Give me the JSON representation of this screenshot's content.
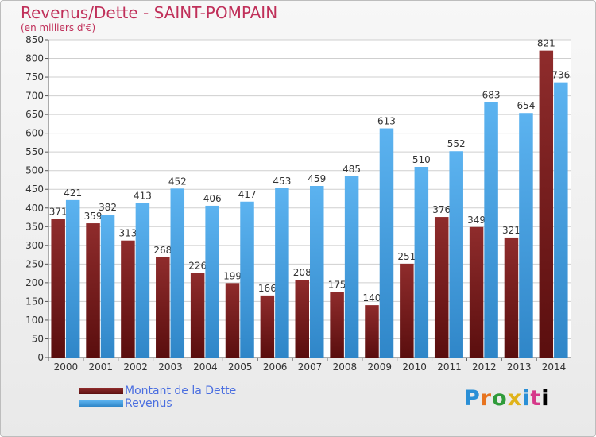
{
  "header": {
    "title": "Revenus/Dette - SAINT-POMPAIN",
    "subtitle": "(en milliers d'€)"
  },
  "colors": {
    "dette": "#7d2020",
    "revenus": "#4aa3e8",
    "axis_text": "#333333",
    "grid": "#cfcfcf"
  },
  "legend": {
    "dette_label": "Montant de la Dette",
    "revenus_label": "Revenus"
  },
  "logo": {
    "text": "Proxiti"
  },
  "chart_data": {
    "type": "bar",
    "title": "Revenus/Dette - SAINT-POMPAIN",
    "ylabel": "(en milliers d'€)",
    "xlabel": "",
    "ylim": [
      0,
      850
    ],
    "ytick_step": 50,
    "grid": true,
    "legend_position": "bottom-left",
    "categories": [
      "2000",
      "2001",
      "2002",
      "2003",
      "2004",
      "2005",
      "2006",
      "2007",
      "2008",
      "2009",
      "2010",
      "2011",
      "2012",
      "2013",
      "2014"
    ],
    "series": [
      {
        "name": "Montant de la Dette",
        "color": "#7d2020",
        "values": [
          371,
          359,
          313,
          268,
          226,
          199,
          166,
          208,
          175,
          140,
          251,
          376,
          349,
          321,
          821
        ]
      },
      {
        "name": "Revenus",
        "color": "#4aa3e8",
        "values": [
          421,
          382,
          413,
          452,
          406,
          417,
          453,
          459,
          485,
          613,
          510,
          552,
          683,
          654,
          736
        ]
      }
    ]
  }
}
